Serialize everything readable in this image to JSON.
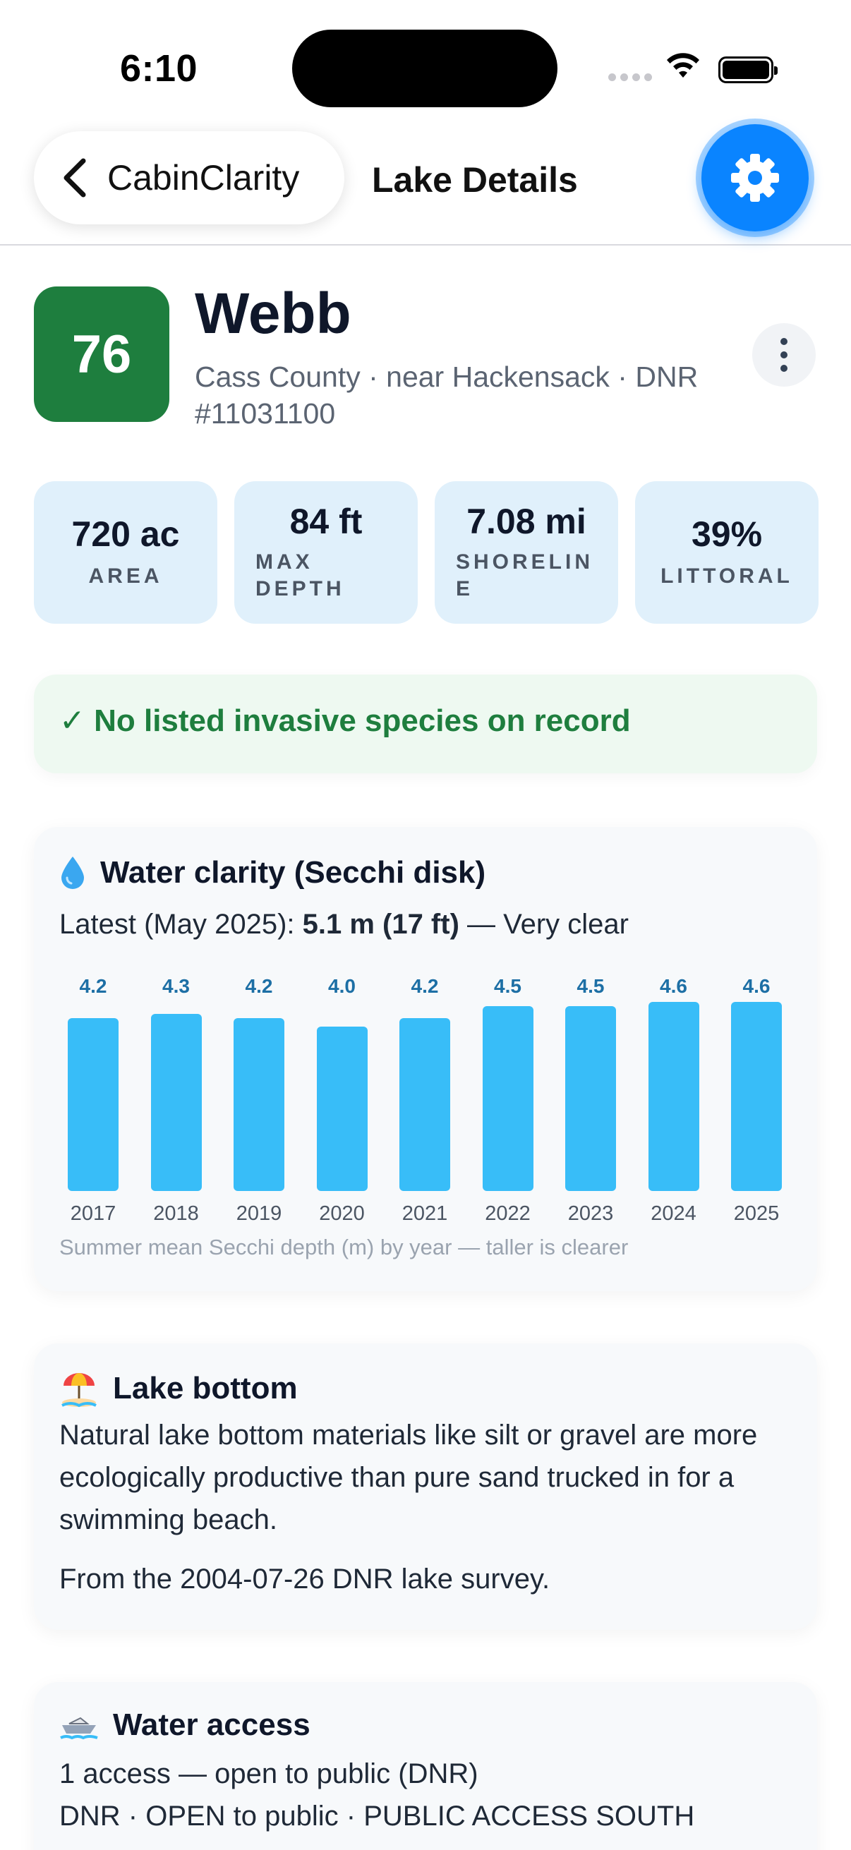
{
  "status_bar": {
    "time": "6:10"
  },
  "nav": {
    "back_label": "CabinClarity",
    "title": "Lake Details"
  },
  "lake": {
    "score": "76",
    "name": "Webb",
    "subtitle": "Cass County · near Hackensack · DNR #11031100"
  },
  "stats": [
    {
      "value": "720 ac",
      "label_lines": [
        "AREA"
      ]
    },
    {
      "value": "84 ft",
      "label_lines": [
        "MAX",
        "DEPTH"
      ]
    },
    {
      "value": "7.08 mi",
      "label_lines": [
        "SHORELIN",
        "E"
      ]
    },
    {
      "value": "39%",
      "label_lines": [
        "LITTORAL"
      ]
    }
  ],
  "invasive": {
    "text": "✓ No listed invasive species on record"
  },
  "clarity": {
    "title": "Water clarity (Secchi disk)",
    "latest_prefix": "Latest (May 2025): ",
    "latest_value": "5.1 m (17 ft)",
    "latest_suffix": " — Very clear",
    "caption": "Summer mean Secchi depth (m) by year — taller is clearer"
  },
  "chart_data": {
    "type": "bar",
    "categories": [
      "2017",
      "2018",
      "2019",
      "2020",
      "2021",
      "2022",
      "2023",
      "2024",
      "2025"
    ],
    "values": [
      4.2,
      4.3,
      4.2,
      4.0,
      4.2,
      4.5,
      4.5,
      4.6,
      4.6
    ],
    "value_labels": [
      "4.2",
      "4.3",
      "4.2",
      "4.0",
      "4.2",
      "4.5",
      "4.5",
      "4.6",
      "4.6"
    ],
    "bar_color": "#38bdf8",
    "ylim": [
      0,
      4.6
    ]
  },
  "bottom": {
    "title": "Lake bottom",
    "body": "Natural lake bottom materials like silt or gravel are more ecologically productive than pure sand trucked in for a swimming beach.",
    "source": "From the 2004-07-26 DNR lake survey."
  },
  "access": {
    "title": "Water access",
    "summary": "1 access — open to public (DNR)",
    "detail": "DNR · OPEN to public · PUBLIC ACCESS SOUTH"
  },
  "colors": {
    "accent": "#0a84ff",
    "score_bg": "#1e7e3e",
    "stat_bg": "#e0f0fb",
    "invasive_bg": "#eef9f1"
  },
  "icons": {
    "back": "chevron-left-icon",
    "settings": "gear-icon",
    "more": "vertical-ellipsis-icon",
    "clarity": "water-drop-icon",
    "bottom": "beach-umbrella-icon",
    "access": "boat-icon"
  }
}
